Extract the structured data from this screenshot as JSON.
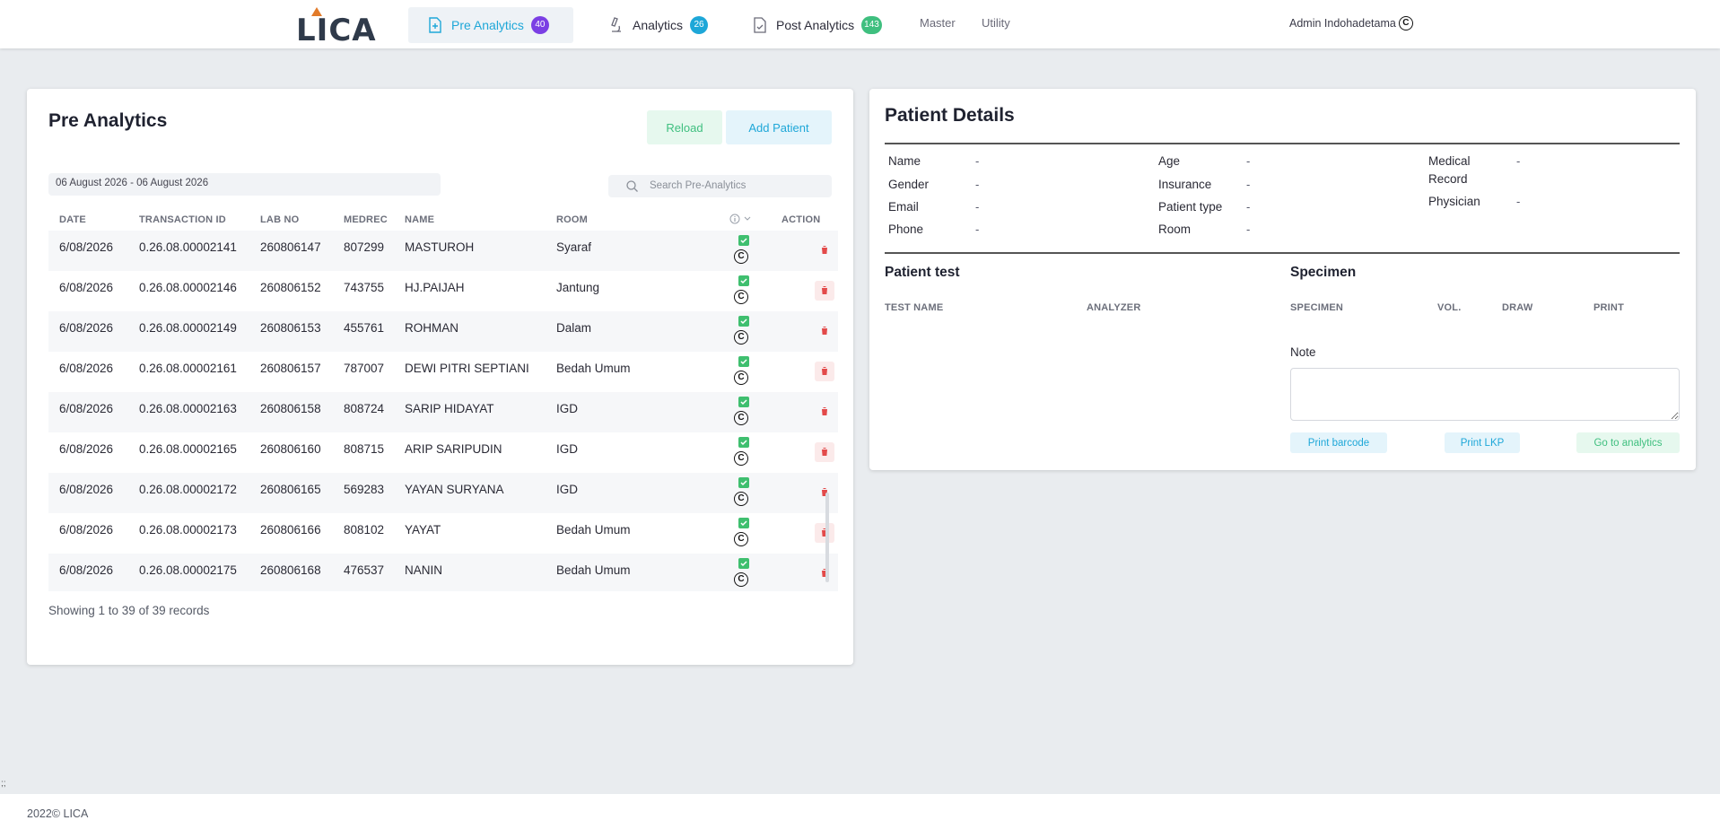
{
  "header": {
    "logo": "LICA",
    "nav": [
      {
        "label": "Pre Analytics",
        "badge": "40",
        "badge_color": "#7b3fe4"
      },
      {
        "label": "Analytics",
        "badge": "26",
        "badge_color": "#1ea7d8"
      },
      {
        "label": "Post Analytics",
        "badge": "143",
        "badge_color": "#3fbf7f"
      }
    ],
    "menu": [
      "Master",
      "Utility"
    ],
    "user": "Admin Indohadetama",
    "user_symbol": "C"
  },
  "pre_analytics": {
    "title": "Pre Analytics",
    "reload_label": "Reload",
    "add_label": "Add Patient",
    "date_range": "06 August 2026 - 06 August 2026",
    "search_placeholder": "Search Pre-Analytics",
    "columns": [
      "DATE",
      "TRANSACTION ID",
      "LAB NO",
      "MEDREC",
      "NAME",
      "ROOM",
      "ACTION"
    ],
    "rows": [
      {
        "date": "6/08/2026",
        "trx": "0.26.08.00002141",
        "lab": "260806147",
        "medrec": "807299",
        "name": "MASTUROH",
        "room": "Syaraf"
      },
      {
        "date": "6/08/2026",
        "trx": "0.26.08.00002146",
        "lab": "260806152",
        "medrec": "743755",
        "name": "HJ.PAIJAH",
        "room": "Jantung"
      },
      {
        "date": "6/08/2026",
        "trx": "0.26.08.00002149",
        "lab": "260806153",
        "medrec": "455761",
        "name": "ROHMAN",
        "room": "Dalam"
      },
      {
        "date": "6/08/2026",
        "trx": "0.26.08.00002161",
        "lab": "260806157",
        "medrec": "787007",
        "name": "DEWI PITRI SEPTIANI",
        "room": "Bedah Umum"
      },
      {
        "date": "6/08/2026",
        "trx": "0.26.08.00002163",
        "lab": "260806158",
        "medrec": "808724",
        "name": "SARIP HIDAYAT",
        "room": "IGD"
      },
      {
        "date": "6/08/2026",
        "trx": "0.26.08.00002165",
        "lab": "260806160",
        "medrec": "808715",
        "name": "ARIP SARIPUDIN",
        "room": "IGD"
      },
      {
        "date": "6/08/2026",
        "trx": "0.26.08.00002172",
        "lab": "260806165",
        "medrec": "569283",
        "name": "YAYAN SURYANA",
        "room": "IGD"
      },
      {
        "date": "6/08/2026",
        "trx": "0.26.08.00002173",
        "lab": "260806166",
        "medrec": "808102",
        "name": "YAYAT",
        "room": "Bedah Umum"
      },
      {
        "date": "6/08/2026",
        "trx": "0.26.08.00002175",
        "lab": "260806168",
        "medrec": "476537",
        "name": "NANIN",
        "room": "Bedah Umum"
      }
    ],
    "status_symbol": "C",
    "records_text": "Showing 1 to 39 of 39 records"
  },
  "patient_details": {
    "title": "Patient Details",
    "fields": {
      "name": {
        "label": "Name",
        "value": "-"
      },
      "gender": {
        "label": "Gender",
        "value": "-"
      },
      "email": {
        "label": "Email",
        "value": "-"
      },
      "phone": {
        "label": "Phone",
        "value": "-"
      },
      "age": {
        "label": "Age",
        "value": "-"
      },
      "insurance": {
        "label": "Insurance",
        "value": "-"
      },
      "patient_type": {
        "label": "Patient type",
        "value": "-"
      },
      "room": {
        "label": "Room",
        "value": "-"
      },
      "medical_record_1": "Medical",
      "medical_record_2": "Record",
      "medical_record_value": "-",
      "physician": {
        "label": "Physician",
        "value": "-"
      }
    },
    "patient_test": {
      "title": "Patient test",
      "columns": [
        "TEST NAME",
        "ANALYZER"
      ]
    },
    "specimen": {
      "title": "Specimen",
      "columns": [
        "SPECIMEN",
        "VOL.",
        "DRAW",
        "PRINT"
      ]
    },
    "note_label": "Note",
    "buttons": {
      "print_barcode": "Print barcode",
      "print_lkp": "Print LKP",
      "go_analytics": "Go to analytics"
    }
  },
  "footer": {
    "text": "2022©  LICA",
    "marker": ";;"
  },
  "colors": {
    "accent": "#1ea7d8",
    "green": "#3fbf7f",
    "danger": "#e34a4a",
    "purple": "#7b3fe4"
  }
}
